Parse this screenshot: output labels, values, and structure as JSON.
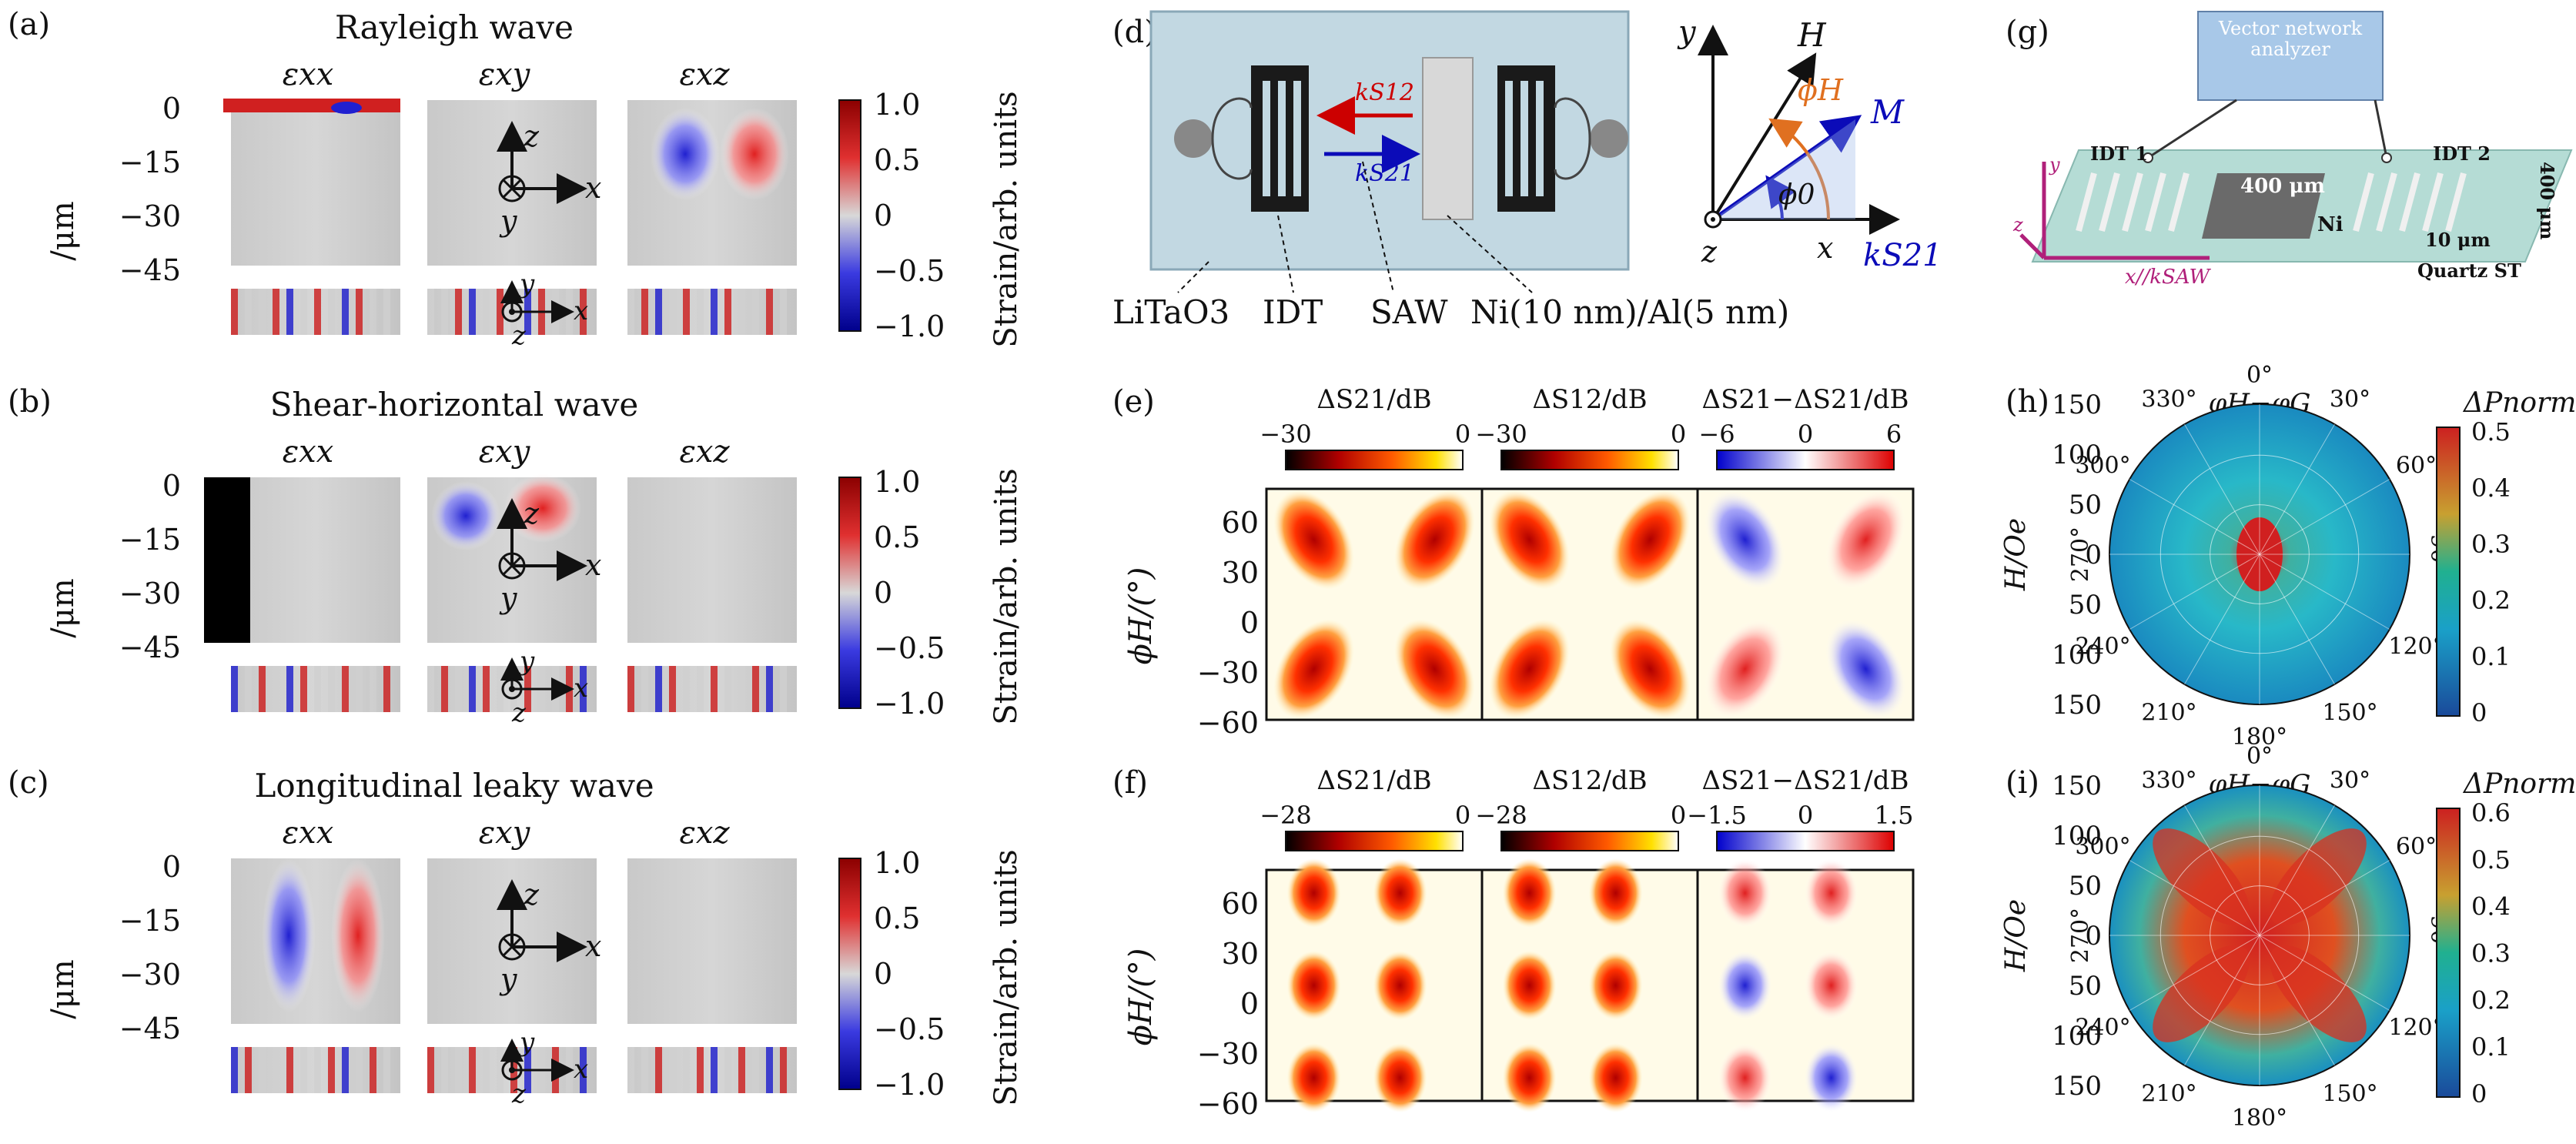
{
  "panels": {
    "a": "(a)",
    "b": "(b)",
    "c": "(c)",
    "d": "(d)",
    "e": "(e)",
    "f": "(f)",
    "g": "(g)",
    "h": "(h)",
    "i": "(i)"
  },
  "wave_titles": [
    "Rayleigh wave",
    "Shear-horizontal wave",
    "Longitudinal leaky wave"
  ],
  "strain_cols": [
    "εxx",
    "εxy",
    "εxz"
  ],
  "depth_label": "/μm",
  "depth_ticks": [
    "0",
    "−15",
    "−30",
    "−45"
  ],
  "cbar_ticks": [
    "1.0",
    "0.5",
    "0",
    "−0.5",
    "−1.0"
  ],
  "cbar_label": "Strain/arb. units",
  "axes": {
    "x": "x",
    "y": "y",
    "z": "z"
  },
  "device_d": {
    "labels": [
      "LiTaO3",
      "IDT",
      "SAW",
      "Ni(10 nm)/Al(5 nm)"
    ],
    "k12": "kS12",
    "k21": "kS21",
    "vec": {
      "H": "H",
      "M": "M",
      "phiH": "ϕH",
      "phi0": "ϕ0",
      "k": "kS21",
      "x": "x",
      "y": "y",
      "z": "z"
    }
  },
  "panel_e": {
    "titles": [
      "ΔS21/dB",
      "ΔS12/dB",
      "ΔS21−ΔS21/dB"
    ],
    "cbar_ticks": [
      [
        "−30",
        "0"
      ],
      [
        "−30",
        "0"
      ],
      [
        "−6",
        "0",
        "6"
      ]
    ],
    "ylabel": "ϕH/(°)",
    "yticks": [
      "60",
      "30",
      "0",
      "−30",
      "−60"
    ]
  },
  "panel_f": {
    "titles": [
      "ΔS21/dB",
      "ΔS12/dB",
      "ΔS21−ΔS21/dB"
    ],
    "cbar_ticks": [
      [
        "−28",
        "0"
      ],
      [
        "−28",
        "0"
      ],
      [
        "−1.5",
        "0",
        "1.5"
      ]
    ],
    "ylabel": "ϕH/(°)",
    "yticks": [
      "60",
      "30",
      "0",
      "−30",
      "−60"
    ]
  },
  "panel_g": {
    "vna": [
      "Vector network",
      "analyzer"
    ],
    "idt1": "IDT 1",
    "idt2": "IDT 2",
    "width": "400 μm",
    "ni": "Ni",
    "gap": "10 μm",
    "len": "400 μm",
    "sub": "Quartz ST",
    "axis": "x//kSAW",
    "y": "y",
    "z": "z"
  },
  "polar": {
    "title": "φH−φG",
    "ylabel": "H/Oe",
    "rticks": [
      "150",
      "100",
      "50",
      "0",
      "50",
      "100",
      "150"
    ],
    "angles": [
      "0°",
      "30°",
      "60°",
      "90°",
      "120°",
      "150°",
      "180°",
      "210°",
      "240°",
      "270°",
      "300°",
      "330°"
    ],
    "cbar_title": "ΔPnorm",
    "cbar_h": [
      "0.5",
      "0.4",
      "0.3",
      "0.2",
      "0.1",
      "0"
    ],
    "cbar_i": [
      "0.6",
      "0.5",
      "0.4",
      "0.3",
      "0.2",
      "0.1",
      "0"
    ]
  },
  "colors": {
    "red": "#cc0000",
    "blue": "#0b0bb8",
    "orange": "#e07020",
    "teal": "#9ed8cf"
  }
}
